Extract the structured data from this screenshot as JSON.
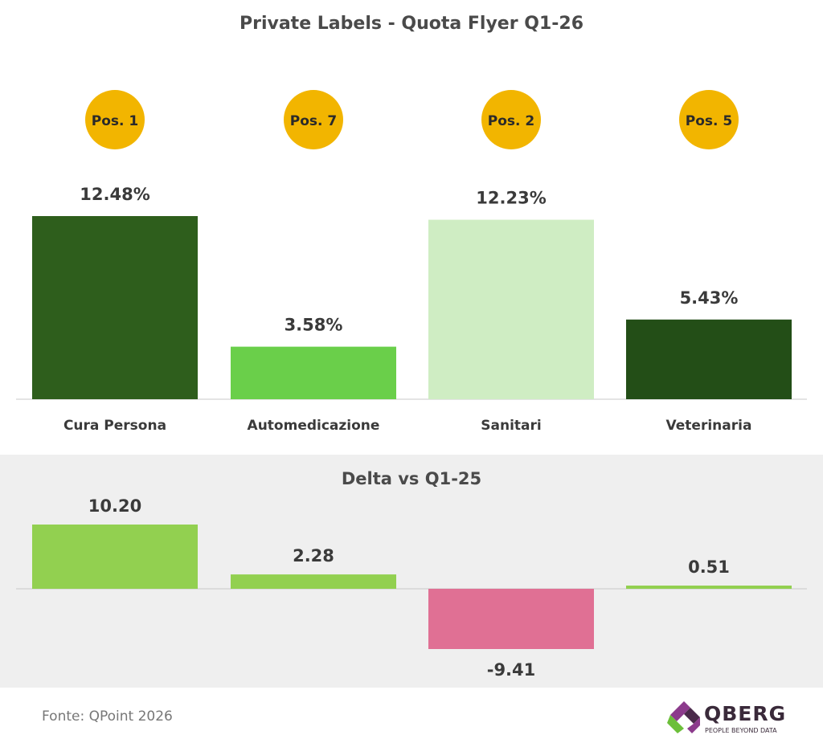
{
  "title": "Private Labels - Quota Flyer Q1-26",
  "delta_title": "Delta vs Q1-25",
  "source": "Fonte: QPoint 2026",
  "logo": {
    "name": "QBERG",
    "tagline": "PEOPLE BEYOND DATA"
  },
  "chart_data": [
    {
      "type": "bar",
      "title": "Private Labels - Quota Flyer Q1-26",
      "categories": [
        "Cura Persona",
        "Automedicazione",
        "Sanitari",
        "Veterinaria"
      ],
      "values": [
        12.48,
        3.58,
        12.23,
        5.43
      ],
      "value_labels": [
        "12.48%",
        "3.58%",
        "12.23%",
        "5.43%"
      ],
      "badges": [
        "Pos. 1",
        "Pos. 7",
        "Pos. 2",
        "Pos. 5"
      ],
      "colors": [
        "#2e5e1c",
        "#6acf4a",
        "#cfedc3",
        "#234e17"
      ],
      "badge_color": "#f2b500",
      "ylim": [
        0,
        12.48
      ]
    },
    {
      "type": "bar",
      "title": "Delta vs Q1-25",
      "categories": [
        "Cura Persona",
        "Automedicazione",
        "Sanitari",
        "Veterinaria"
      ],
      "values": [
        10.2,
        2.28,
        -9.41,
        0.51
      ],
      "value_labels": [
        "10.20",
        "2.28",
        "-9.41",
        "0.51"
      ],
      "colors": {
        "positive": "#92d050",
        "negative": "#e07094"
      },
      "ylim": [
        -9.41,
        10.2
      ]
    }
  ]
}
